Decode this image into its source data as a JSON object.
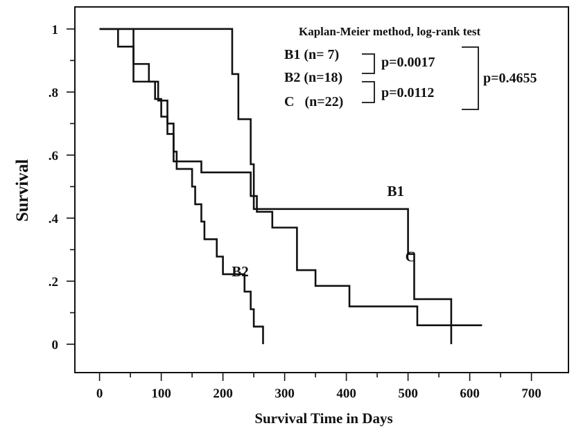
{
  "chart_data": {
    "type": "line",
    "step": true,
    "title": "",
    "xlabel": "Survival Time in Days",
    "ylabel": "Survival",
    "xlim": [
      -40,
      760
    ],
    "ylim": [
      -0.09,
      1.07
    ],
    "xticks": [
      0,
      100,
      200,
      300,
      400,
      500,
      600,
      700
    ],
    "xtick_labels": [
      "0",
      "100",
      "200",
      "300",
      "400",
      "500",
      "600",
      "700"
    ],
    "yticks": [
      0,
      0.2,
      0.4,
      0.6,
      0.8,
      1
    ],
    "ytick_labels": [
      "0",
      ".2",
      ".4",
      ".6",
      ".8",
      "1"
    ],
    "grid": false,
    "series": [
      {
        "name": "B1",
        "x": [
          0,
          210,
          215,
          225,
          245,
          250,
          495,
          500,
          510,
          570,
          570
        ],
        "y": [
          1,
          1,
          0.857,
          0.714,
          0.571,
          0.429,
          0.429,
          0.286,
          0.143,
          0.143,
          0
        ]
      },
      {
        "name": "B2",
        "x": [
          0,
          30,
          50,
          55,
          75,
          80,
          90,
          100,
          110,
          120,
          125,
          140,
          150,
          155,
          165,
          170,
          185,
          190,
          200,
          235,
          245,
          250,
          265,
          265
        ],
        "y": [
          1,
          0.944,
          0.944,
          0.889,
          0.889,
          0.833,
          0.778,
          0.722,
          0.667,
          0.611,
          0.556,
          0.556,
          0.5,
          0.444,
          0.389,
          0.333,
          0.333,
          0.278,
          0.222,
          0.167,
          0.111,
          0.056,
          0.056,
          0
        ]
      },
      {
        "name": "C",
        "x": [
          0,
          45,
          55,
          75,
          95,
          110,
          120,
          140,
          165,
          215,
          245,
          255,
          280,
          320,
          350,
          405,
          500,
          515,
          620
        ],
        "y": [
          1,
          1,
          0.833,
          0.833,
          0.773,
          0.7,
          0.58,
          0.58,
          0.545,
          0.545,
          0.47,
          0.42,
          0.37,
          0.235,
          0.185,
          0.12,
          0.12,
          0.06,
          0.06
        ]
      }
    ],
    "curve_labels": [
      {
        "text": "B1",
        "x": 480,
        "y": 0.47
      },
      {
        "text": "B2",
        "x": 228,
        "y": 0.215
      },
      {
        "text": "C",
        "x": 504,
        "y": 0.263
      }
    ],
    "annotation": {
      "method": "Kaplan-Meier method, log-rank test",
      "groups": [
        "B1 (n= 7)",
        "B2 (n=18)",
        "C   (n=22)"
      ],
      "p_b1_b2": "p=0.0017",
      "p_b2_c": "p=0.0112",
      "p_b1_c": "p=0.4655"
    }
  }
}
